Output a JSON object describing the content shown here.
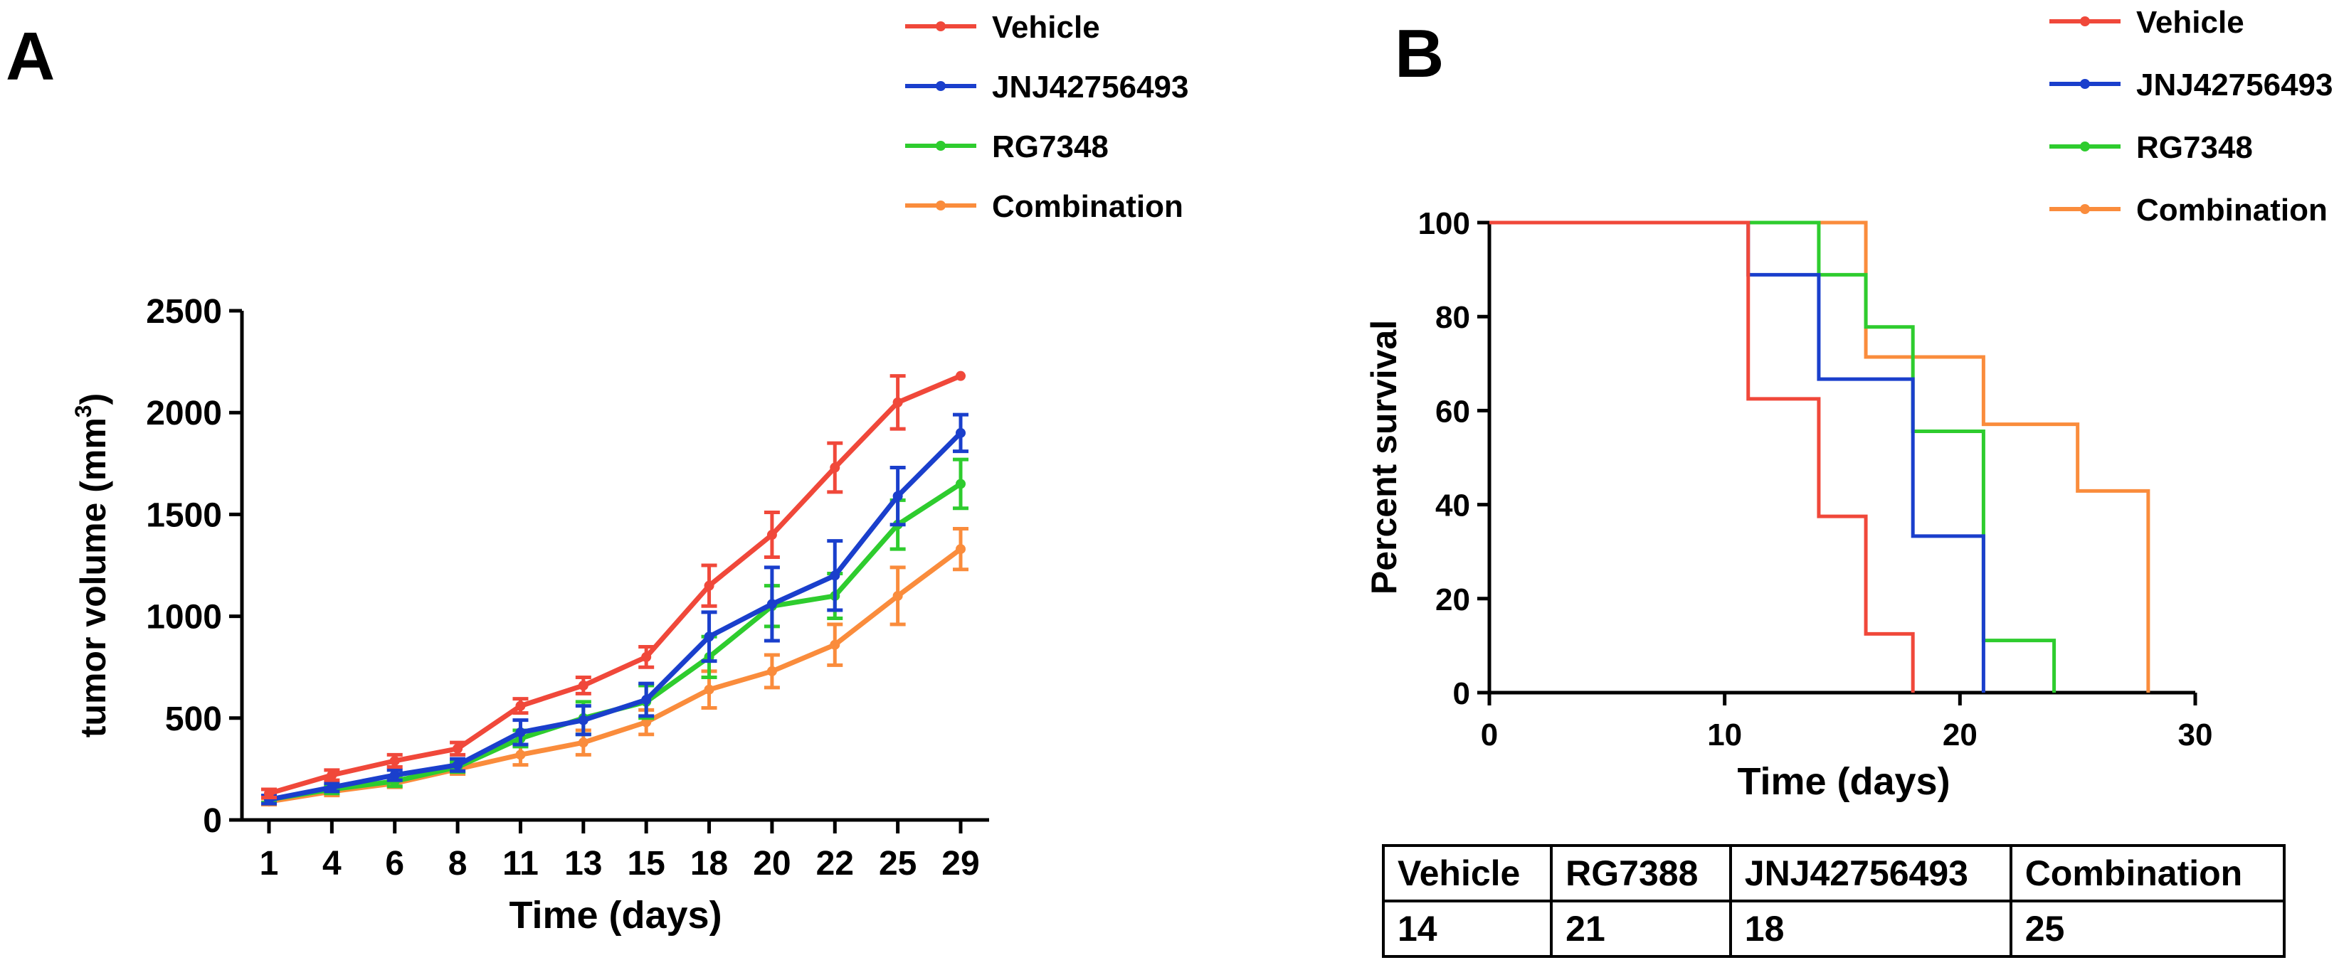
{
  "colors": {
    "vehicle": "#f0483a",
    "jnj": "#1a3fcc",
    "rg": "#2ecc2e",
    "combination": "#fa8c3c"
  },
  "panel_labels": {
    "a": "A",
    "b": "B"
  },
  "chart_data": [
    {
      "type": "line",
      "panel": "A",
      "title": "",
      "xlabel": "Time (days)",
      "ylabel_main": "tumor volume (mm",
      "ylabel_sup": "3",
      "ylabel_close": ")",
      "categories": [
        "1",
        "4",
        "6",
        "8",
        "11",
        "13",
        "15",
        "18",
        "20",
        "22",
        "25",
        "29"
      ],
      "ylim": [
        0,
        2500
      ],
      "yticks": [
        "0",
        "500",
        "1000",
        "1500",
        "2000",
        "2500"
      ],
      "legend": [
        "Vehicle",
        "JNJ42756493",
        "RG7348",
        "Combination"
      ],
      "series": [
        {
          "name": "Vehicle",
          "color_key": "vehicle",
          "values": [
            130,
            220,
            290,
            350,
            560,
            660,
            800,
            1150,
            1400,
            1730,
            2050,
            2180
          ],
          "errors": [
            20,
            25,
            30,
            30,
            35,
            40,
            50,
            100,
            110,
            120,
            130,
            0
          ]
        },
        {
          "name": "JNJ42756493",
          "color_key": "jnj",
          "values": [
            100,
            160,
            220,
            270,
            430,
            490,
            590,
            900,
            1060,
            1200,
            1590,
            1900
          ],
          "errors": [
            20,
            20,
            25,
            30,
            60,
            70,
            80,
            120,
            180,
            170,
            140,
            90
          ]
        },
        {
          "name": "RG7348",
          "color_key": "rg",
          "values": [
            100,
            150,
            190,
            260,
            400,
            500,
            580,
            800,
            1050,
            1100,
            1450,
            1650
          ],
          "errors": [
            15,
            20,
            25,
            25,
            40,
            80,
            80,
            100,
            100,
            110,
            120,
            120
          ]
        },
        {
          "name": "Combination",
          "color_key": "combination",
          "values": [
            90,
            140,
            180,
            250,
            320,
            380,
            480,
            640,
            730,
            860,
            1100,
            1330
          ],
          "errors": [
            15,
            20,
            20,
            25,
            50,
            60,
            60,
            90,
            80,
            100,
            140,
            100
          ]
        }
      ]
    },
    {
      "type": "line",
      "subtype": "step",
      "panel": "B",
      "title": "",
      "xlabel": "Time (days)",
      "ylabel": "Percent survival",
      "xlim": [
        0,
        30
      ],
      "ylim": [
        0,
        100
      ],
      "xticks": [
        "0",
        "10",
        "20",
        "30"
      ],
      "yticks": [
        "0",
        "20",
        "40",
        "60",
        "80",
        "100"
      ],
      "legend": [
        "Vehicle",
        "JNJ42756493",
        "RG7348",
        "Combination"
      ],
      "series": [
        {
          "name": "Vehicle",
          "color_key": "vehicle",
          "x": [
            0,
            11,
            14,
            16,
            18
          ],
          "y": [
            100,
            62.5,
            37.5,
            12.5,
            0
          ]
        },
        {
          "name": "JNJ42756493",
          "color_key": "jnj",
          "x": [
            0,
            11,
            14,
            18,
            21
          ],
          "y": [
            100,
            88.9,
            66.7,
            33.3,
            0
          ]
        },
        {
          "name": "RG7348",
          "color_key": "rg",
          "x": [
            0,
            14,
            16,
            18,
            21,
            24
          ],
          "y": [
            100,
            88.9,
            77.8,
            55.6,
            11.1,
            0
          ]
        },
        {
          "name": "Combination",
          "color_key": "combination",
          "x": [
            0,
            16,
            21,
            25,
            28
          ],
          "y": [
            100,
            71.4,
            57.1,
            42.9,
            0
          ]
        }
      ]
    },
    {
      "type": "table",
      "panel": "B",
      "title": "",
      "headers": [
        "Vehicle",
        "RG7388",
        "JNJ42756493",
        "Combination"
      ],
      "rows": [
        [
          "14",
          "21",
          "18",
          "25"
        ]
      ]
    }
  ]
}
